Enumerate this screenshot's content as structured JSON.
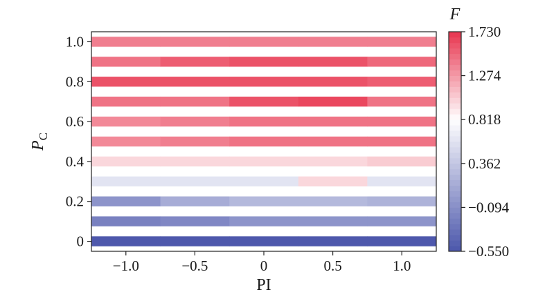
{
  "chart_data": {
    "type": "heatmap",
    "xlabel": "PI",
    "ylabel_main": "P",
    "ylabel_sub": "C",
    "colorbar_title": "F",
    "x_ticks": [
      "−1.0",
      "−0.5",
      "0",
      "0.5",
      "1.0"
    ],
    "x_tick_values": [
      -1.0,
      -0.5,
      0,
      0.5,
      1.0
    ],
    "y_ticks": [
      "0",
      "0.2",
      "0.4",
      "0.6",
      "0.8",
      "1.0"
    ],
    "y_tick_values": [
      0,
      0.2,
      0.4,
      0.6,
      0.8,
      1.0
    ],
    "xlim": [
      -1.25,
      1.25
    ],
    "ylim": [
      -0.05,
      1.05
    ],
    "x_centers": [
      -1.0,
      -0.5,
      0,
      0.5,
      1.0
    ],
    "y_centers": [
      0,
      0.1,
      0.2,
      0.3,
      0.4,
      0.5,
      0.6,
      0.7,
      0.8,
      0.9,
      1.0
    ],
    "cell_width": 0.5,
    "band_height": 0.05,
    "z": [
      [
        -0.53,
        -0.53,
        -0.53,
        -0.53,
        -0.53
      ],
      [
        -0.2,
        -0.15,
        -0.05,
        -0.05,
        -0.05
      ],
      [
        -0.05,
        0.15,
        0.25,
        0.25,
        0.2
      ],
      [
        0.6,
        0.6,
        0.6,
        1.0,
        0.6
      ],
      [
        1.0,
        1.0,
        1.0,
        1.0,
        1.05
      ],
      [
        1.35,
        1.4,
        1.45,
        1.45,
        1.45
      ],
      [
        1.35,
        1.4,
        1.45,
        1.45,
        1.45
      ],
      [
        1.45,
        1.45,
        1.6,
        1.65,
        1.45
      ],
      [
        1.6,
        1.6,
        1.6,
        1.6,
        1.55
      ],
      [
        1.45,
        1.55,
        1.6,
        1.6,
        1.5
      ],
      [
        1.4,
        1.4,
        1.4,
        1.4,
        1.4
      ]
    ],
    "colorbar": {
      "min": -0.55,
      "max": 1.73,
      "ticks": [
        "1.730",
        "1.274",
        "0.818",
        "0.362",
        "−0.094",
        "−0.550"
      ],
      "tick_values": [
        1.73,
        1.274,
        0.818,
        0.362,
        -0.094,
        -0.55
      ],
      "colors": [
        "#4b56ab",
        "#ffffff",
        "#e8354f"
      ],
      "white_point": 0.6
    },
    "grid": false
  }
}
